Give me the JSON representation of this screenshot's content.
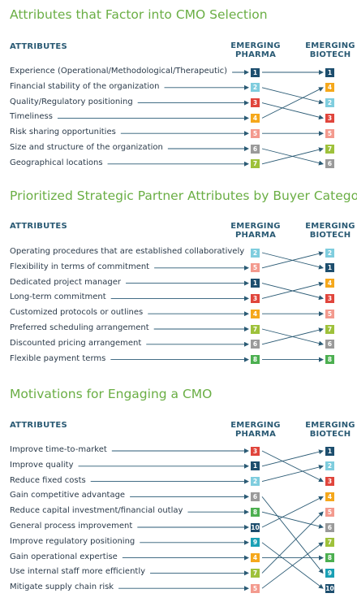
{
  "colors": {
    "1": "#1d4e6e",
    "2": "#7fcdde",
    "3": "#e0453c",
    "4": "#f5a81c",
    "5": "#f39a8e",
    "6": "#9a9a9a",
    "7": "#9ec13b",
    "8": "#4caf50",
    "9": "#1aa0b5",
    "10": "#1d4e6e"
  },
  "sections": [
    {
      "title": "Attributes that Factor into CMO Selection",
      "attributes_header": "ATTRIBUTES",
      "pharma_header": [
        "EMERGING",
        "PHARMA"
      ],
      "biotech_header": [
        "EMERGING",
        "BIOTECH"
      ],
      "rows": [
        {
          "label": "Experience (Operational/Methodological/Therapeutic)",
          "pharma": 1
        },
        {
          "label": "Financial stability of the organization",
          "pharma": 2
        },
        {
          "label": "Quality/Regulatory positioning",
          "pharma": 3
        },
        {
          "label": "Timeliness",
          "pharma": 4
        },
        {
          "label": "Risk sharing opportunities",
          "pharma": 5
        },
        {
          "label": "Size and structure of the organization",
          "pharma": 6
        },
        {
          "label": "Geographical locations",
          "pharma": 7
        }
      ],
      "biotech_ranks": [
        1,
        4,
        2,
        3,
        5,
        7,
        6
      ]
    },
    {
      "title": "Prioritized Strategic Partner Attributes by Buyer Category",
      "attributes_header": "ATTRIBUTES",
      "pharma_header": [
        "EMERGING",
        "PHARMA"
      ],
      "biotech_header": [
        "EMERGING",
        "BIOTECH"
      ],
      "rows": [
        {
          "label": "Operating procedures that are established collaboratively",
          "pharma": 2
        },
        {
          "label": "Flexibility in terms of commitment",
          "pharma": 5
        },
        {
          "label": "Dedicated project manager",
          "pharma": 1
        },
        {
          "label": "Long-term commitment",
          "pharma": 3
        },
        {
          "label": "Customized protocols or outlines",
          "pharma": 4
        },
        {
          "label": "Preferred scheduling arrangement",
          "pharma": 7
        },
        {
          "label": "Discounted pricing arrangement",
          "pharma": 6
        },
        {
          "label": "Flexible payment terms",
          "pharma": 8
        }
      ],
      "biotech_ranks": [
        2,
        1,
        4,
        3,
        5,
        7,
        6,
        8
      ]
    },
    {
      "title": "Motivations for Engaging a CMO",
      "attributes_header": "ATTRIBUTES",
      "pharma_header": [
        "EMERGING",
        "PHARMA"
      ],
      "biotech_header": [
        "EMERGING",
        "BIOTECH"
      ],
      "rows": [
        {
          "label": "Improve time-to-market",
          "pharma": 3
        },
        {
          "label": "Improve quality",
          "pharma": 1
        },
        {
          "label": "Reduce fixed costs",
          "pharma": 2
        },
        {
          "label": "Gain competitive advantage",
          "pharma": 6
        },
        {
          "label": "Reduce capital investment/financial outlay",
          "pharma": 8
        },
        {
          "label": "General process improvement",
          "pharma": 10
        },
        {
          "label": "Improve regulatory positioning",
          "pharma": 9
        },
        {
          "label": "Gain operational expertise",
          "pharma": 4
        },
        {
          "label": "Use internal staff more efficiently",
          "pharma": 7
        },
        {
          "label": "Mitigate supply chain risk",
          "pharma": 5
        }
      ],
      "biotech_ranks": [
        1,
        2,
        3,
        4,
        5,
        6,
        7,
        8,
        9,
        10
      ]
    }
  ]
}
